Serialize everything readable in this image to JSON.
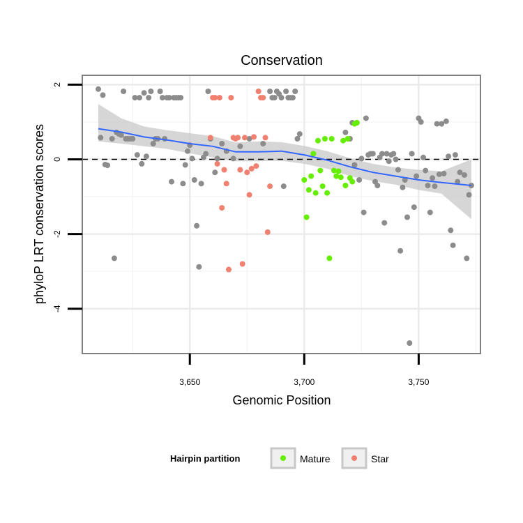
{
  "chart_data": {
    "type": "scatter",
    "title": "Conservation",
    "xlabel": "Genomic Position",
    "ylabel": "phyloP LRT conservation scores",
    "xlim": [
      3603,
      3777
    ],
    "ylim": [
      -5.2,
      2.25
    ],
    "x_ticks": [
      {
        "value": 3650,
        "label": "3,650"
      },
      {
        "value": 3700,
        "label": "3,700"
      },
      {
        "value": 3750,
        "label": "3,750"
      }
    ],
    "y_ticks": [
      {
        "value": 2,
        "label": "2"
      },
      {
        "value": 0,
        "label": "0"
      },
      {
        "value": -2,
        "label": "-2"
      },
      {
        "value": -4,
        "label": "-4"
      }
    ],
    "grid": true,
    "reference_line": {
      "y": 0,
      "style": "dashed",
      "color": "#000000"
    },
    "legend": {
      "title": "Hairpin partition",
      "position": "bottom",
      "entries": [
        {
          "label": "Mature",
          "color": "#66ee00"
        },
        {
          "label": "Star",
          "color": "#f08070"
        }
      ]
    },
    "colors": {
      "other": "#8c8c8c",
      "Mature": "#66ee00",
      "Star": "#f08070",
      "smooth": "#3366ff",
      "ribbon": "#c8c8c8"
    },
    "series": [
      {
        "group": "other",
        "points": [
          [
            3610,
            1.88
          ],
          [
            3611,
            0.58
          ],
          [
            3612,
            1.72
          ],
          [
            3613,
            -0.14
          ],
          [
            3614,
            -0.16
          ],
          [
            3616,
            0.55
          ],
          [
            3617,
            -2.65
          ],
          [
            3618,
            0.72
          ],
          [
            3619,
            0.68
          ],
          [
            3620,
            0.65
          ],
          [
            3621,
            1.82
          ],
          [
            3622,
            0.55
          ],
          [
            3623,
            0.55
          ],
          [
            3624,
            0.55
          ],
          [
            3625,
            0.55
          ],
          [
            3626,
            1.65
          ],
          [
            3627,
            0.12
          ],
          [
            3628,
            1.65
          ],
          [
            3629,
            -0.12
          ],
          [
            3630,
            1.78
          ],
          [
            3631,
            0.08
          ],
          [
            3632,
            1.65
          ],
          [
            3633,
            1.82
          ],
          [
            3634,
            0.42
          ],
          [
            3635,
            0.55
          ],
          [
            3636,
            0.55
          ],
          [
            3637,
            1.82
          ],
          [
            3638,
            1.65
          ],
          [
            3639,
            0.55
          ],
          [
            3640,
            1.65
          ],
          [
            3641,
            1.65
          ],
          [
            3642,
            -0.6
          ],
          [
            3643,
            1.65
          ],
          [
            3644,
            1.65
          ],
          [
            3645,
            1.65
          ],
          [
            3646,
            1.65
          ],
          [
            3647,
            -0.65
          ],
          [
            3648,
            -0.15
          ],
          [
            3649,
            0.22
          ],
          [
            3650,
            0.38
          ],
          [
            3651,
            0.02
          ],
          [
            3652,
            -0.55
          ],
          [
            3653,
            -1.78
          ],
          [
            3654,
            -2.88
          ],
          [
            3655,
            -0.65
          ],
          [
            3656,
            0.05
          ],
          [
            3657,
            0.15
          ],
          [
            3658,
            1.82
          ],
          [
            3659,
            0.55
          ],
          [
            3661,
            -0.35
          ],
          [
            3662,
            0.02
          ],
          [
            3664,
            0.42
          ],
          [
            3666,
            0.22
          ],
          [
            3669,
            0.02
          ],
          [
            3672,
            0.35
          ],
          [
            3676,
            0.55
          ],
          [
            3682,
            0.42
          ],
          [
            3685,
            1.82
          ],
          [
            3686,
            1.65
          ],
          [
            3687,
            1.65
          ],
          [
            3688,
            1.82
          ],
          [
            3689,
            1.75
          ],
          [
            3690,
            1.65
          ],
          [
            3691,
            -0.72
          ],
          [
            3692,
            1.82
          ],
          [
            3693,
            1.65
          ],
          [
            3694,
            1.65
          ],
          [
            3695,
            1.65
          ],
          [
            3696,
            1.82
          ],
          [
            3697,
            0.55
          ],
          [
            3698,
            0.68
          ],
          [
            3718,
            0.72
          ],
          [
            3720,
            0.55
          ],
          [
            3721,
            0.98
          ],
          [
            3722,
            -0.15
          ],
          [
            3723,
            0.98
          ],
          [
            3724,
            -0.55
          ],
          [
            3725,
            0.02
          ],
          [
            3726,
            -1.42
          ],
          [
            3727,
            1.1
          ],
          [
            3728,
            0.12
          ],
          [
            3729,
            0.15
          ],
          [
            3730,
            0.15
          ],
          [
            3731,
            -0.6
          ],
          [
            3732,
            -0.7
          ],
          [
            3733,
            0.05
          ],
          [
            3734,
            0.15
          ],
          [
            3735,
            -1.7
          ],
          [
            3736,
            0.15
          ],
          [
            3737,
            -0.05
          ],
          [
            3738,
            0.12
          ],
          [
            3739,
            0.15
          ],
          [
            3740,
            0.0
          ],
          [
            3741,
            -0.28
          ],
          [
            3742,
            -2.45
          ],
          [
            3743,
            -0.75
          ],
          [
            3744,
            -0.55
          ],
          [
            3745,
            -1.55
          ],
          [
            3746,
            -4.92
          ],
          [
            3747,
            0.15
          ],
          [
            3748,
            -1.28
          ],
          [
            3749,
            -0.45
          ],
          [
            3750,
            1.1
          ],
          [
            3751,
            1.0
          ],
          [
            3752,
            0.05
          ],
          [
            3753,
            -0.3
          ],
          [
            3754,
            -0.7
          ],
          [
            3755,
            -1.42
          ],
          [
            3756,
            -0.5
          ],
          [
            3757,
            -0.72
          ],
          [
            3758,
            0.95
          ],
          [
            3759,
            -0.4
          ],
          [
            3760,
            0.95
          ],
          [
            3761,
            -0.38
          ],
          [
            3762,
            1.02
          ],
          [
            3763,
            0.08
          ],
          [
            3764,
            -1.9
          ],
          [
            3765,
            -2.3
          ],
          [
            3766,
            0.12
          ],
          [
            3767,
            -0.6
          ],
          [
            3768,
            -0.35
          ],
          [
            3770,
            -0.42
          ],
          [
            3771,
            -2.65
          ],
          [
            3772,
            -0.95
          ],
          [
            3773,
            -0.7
          ]
        ]
      },
      {
        "group": "Mature",
        "points": [
          [
            3700,
            -0.55
          ],
          [
            3701,
            -1.55
          ],
          [
            3702,
            -0.82
          ],
          [
            3703,
            -0.45
          ],
          [
            3704,
            0.15
          ],
          [
            3705,
            -0.9
          ],
          [
            3706,
            0.5
          ],
          [
            3707,
            -0.3
          ],
          [
            3708,
            -0.72
          ],
          [
            3709,
            0.55
          ],
          [
            3710,
            -0.9
          ],
          [
            3711,
            -2.65
          ],
          [
            3712,
            0.55
          ],
          [
            3713,
            -0.3
          ],
          [
            3714,
            -0.45
          ],
          [
            3715,
            -0.32
          ],
          [
            3716,
            -0.48
          ],
          [
            3717,
            0.5
          ],
          [
            3718,
            -0.7
          ],
          [
            3719,
            0.55
          ],
          [
            3720,
            -0.5
          ],
          [
            3721,
            -0.6
          ],
          [
            3722,
            0.95
          ],
          [
            3723,
            0.98
          ]
        ]
      },
      {
        "group": "Star",
        "points": [
          [
            3659,
            0.58
          ],
          [
            3660,
            1.65
          ],
          [
            3661,
            1.65
          ],
          [
            3662,
            -0.12
          ],
          [
            3663,
            1.65
          ],
          [
            3664,
            -1.3
          ],
          [
            3665,
            -0.28
          ],
          [
            3666,
            -0.65
          ],
          [
            3667,
            -2.95
          ],
          [
            3668,
            1.65
          ],
          [
            3669,
            0.58
          ],
          [
            3670,
            0.55
          ],
          [
            3671,
            0.58
          ],
          [
            3672,
            -0.28
          ],
          [
            3673,
            -2.8
          ],
          [
            3674,
            0.58
          ],
          [
            3675,
            -0.35
          ],
          [
            3676,
            -0.95
          ],
          [
            3677,
            -0.25
          ],
          [
            3678,
            0.6
          ],
          [
            3679,
            -0.18
          ],
          [
            3680,
            1.82
          ],
          [
            3681,
            1.65
          ],
          [
            3682,
            1.65
          ],
          [
            3683,
            0.58
          ],
          [
            3684,
            -1.95
          ],
          [
            3685,
            -0.72
          ]
        ]
      }
    ],
    "smooth": [
      [
        3610,
        0.82,
        0.48,
        1.48
      ],
      [
        3620,
        0.73,
        0.42,
        1.1
      ],
      [
        3630,
        0.6,
        0.35,
        0.88
      ],
      [
        3640,
        0.52,
        0.28,
        0.78
      ],
      [
        3650,
        0.42,
        0.16,
        0.7
      ],
      [
        3660,
        0.35,
        0.05,
        0.62
      ],
      [
        3670,
        0.2,
        -0.05,
        0.45
      ],
      [
        3680,
        0.2,
        -0.05,
        0.48
      ],
      [
        3690,
        0.22,
        -0.04,
        0.46
      ],
      [
        3700,
        0.12,
        -0.12,
        0.36
      ],
      [
        3710,
        -0.02,
        -0.25,
        0.22
      ],
      [
        3720,
        -0.2,
        -0.45,
        0.03
      ],
      [
        3730,
        -0.35,
        -0.58,
        -0.12
      ],
      [
        3740,
        -0.45,
        -0.68,
        -0.22
      ],
      [
        3750,
        -0.55,
        -0.82,
        -0.28
      ],
      [
        3760,
        -0.62,
        -0.92,
        -0.32
      ],
      [
        3773,
        -0.7,
        -1.6,
        0.0
      ]
    ]
  }
}
